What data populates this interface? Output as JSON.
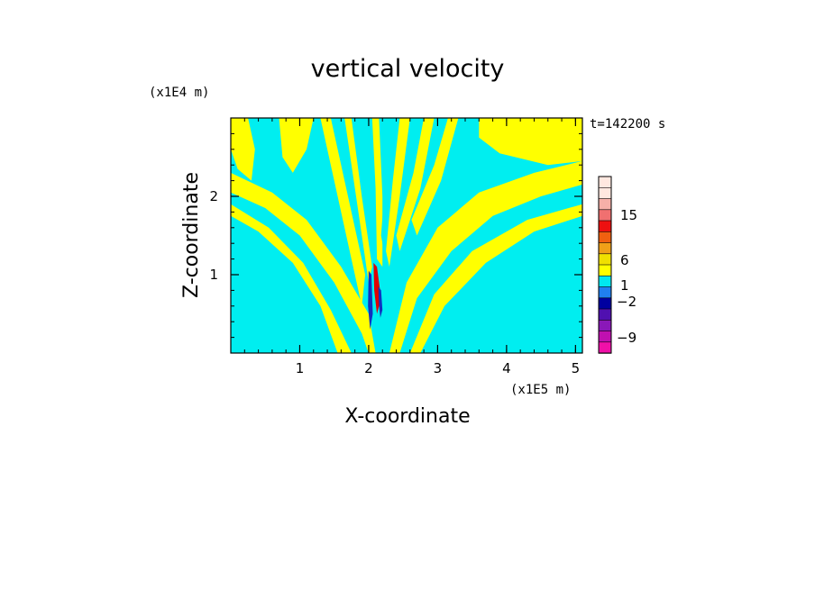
{
  "chart_data": {
    "type": "heatmap",
    "title": "vertical velocity",
    "xlabel": "X-coordinate",
    "ylabel": "Z-coordinate",
    "x_unit": "(x1E5 m)",
    "y_unit": "(x1E4 m)",
    "time_label": "t=142200 s",
    "xlim": [
      0.0,
      5.1
    ],
    "ylim": [
      0.0,
      3.0
    ],
    "x_ticks": [
      1,
      2,
      3,
      4,
      5
    ],
    "y_ticks": [
      1,
      2
    ],
    "colorbar": {
      "tick_labels": [
        "15",
        "6",
        "1",
        "−2",
        "−9"
      ],
      "levels_top_to_bottom": [
        {
          "color": "#ffe8e0"
        },
        {
          "color": "#ffe8e0"
        },
        {
          "color": "#f6b0a8"
        },
        {
          "color": "#f07070"
        },
        {
          "color": "#ee1010"
        },
        {
          "color": "#f06010"
        },
        {
          "color": "#f0a018"
        },
        {
          "color": "#f0e000"
        },
        {
          "color": "#ffff00"
        },
        {
          "color": "#00e8f0"
        },
        {
          "color": "#2080f0"
        },
        {
          "color": "#0000a0"
        },
        {
          "color": "#5010b0"
        },
        {
          "color": "#8a18b8"
        },
        {
          "color": "#c010b0"
        },
        {
          "color": "#f010a8"
        }
      ]
    },
    "field_colors": {
      "positive": "#ffff00",
      "negative": "#00eef0",
      "strong_up": "#e00000",
      "strong_down": "#1030c0"
    },
    "positive_regions": [
      {
        "name": "left-upper-band",
        "path": [
          [
            0.0,
            2.05
          ],
          [
            0.5,
            1.85
          ],
          [
            1.0,
            1.5
          ],
          [
            1.5,
            0.9
          ],
          [
            1.9,
            0.25
          ],
          [
            2.0,
            0.0
          ],
          [
            2.1,
            0.0
          ],
          [
            2.0,
            0.5
          ],
          [
            1.6,
            1.1
          ],
          [
            1.1,
            1.7
          ],
          [
            0.6,
            2.05
          ],
          [
            0.0,
            2.3
          ]
        ]
      },
      {
        "name": "left-mid-band",
        "path": [
          [
            0.0,
            1.75
          ],
          [
            0.4,
            1.55
          ],
          [
            0.9,
            1.15
          ],
          [
            1.3,
            0.6
          ],
          [
            1.55,
            0.0
          ],
          [
            1.75,
            0.0
          ],
          [
            1.45,
            0.55
          ],
          [
            1.05,
            1.15
          ],
          [
            0.55,
            1.6
          ],
          [
            0.0,
            1.9
          ]
        ]
      },
      {
        "name": "right-upper-band",
        "path": [
          [
            2.3,
            0.0
          ],
          [
            2.45,
            0.0
          ],
          [
            2.7,
            0.7
          ],
          [
            3.2,
            1.3
          ],
          [
            3.8,
            1.75
          ],
          [
            4.5,
            2.0
          ],
          [
            5.1,
            2.15
          ],
          [
            5.1,
            2.45
          ],
          [
            4.4,
            2.3
          ],
          [
            3.6,
            2.05
          ],
          [
            3.0,
            1.6
          ],
          [
            2.55,
            0.9
          ]
        ]
      },
      {
        "name": "right-mid-band",
        "path": [
          [
            2.6,
            0.0
          ],
          [
            2.75,
            0.0
          ],
          [
            3.1,
            0.6
          ],
          [
            3.7,
            1.15
          ],
          [
            4.4,
            1.55
          ],
          [
            5.1,
            1.75
          ],
          [
            5.1,
            1.9
          ],
          [
            4.3,
            1.7
          ],
          [
            3.5,
            1.3
          ],
          [
            2.95,
            0.75
          ]
        ]
      },
      {
        "name": "upper-right-block",
        "path": [
          [
            3.6,
            3.0
          ],
          [
            5.1,
            3.0
          ],
          [
            5.1,
            2.45
          ],
          [
            4.6,
            2.4
          ],
          [
            3.9,
            2.55
          ],
          [
            3.6,
            2.75
          ]
        ]
      },
      {
        "name": "upper-left-block",
        "path": [
          [
            0.7,
            3.0
          ],
          [
            1.2,
            3.0
          ],
          [
            1.1,
            2.6
          ],
          [
            0.9,
            2.3
          ],
          [
            0.75,
            2.5
          ]
        ]
      },
      {
        "name": "top-left-streak",
        "path": [
          [
            0.0,
            3.0
          ],
          [
            0.25,
            3.0
          ],
          [
            0.35,
            2.6
          ],
          [
            0.3,
            2.2
          ],
          [
            0.1,
            2.35
          ],
          [
            0.0,
            2.6
          ]
        ]
      },
      {
        "name": "center-fan-1",
        "path": [
          [
            1.3,
            3.0
          ],
          [
            1.45,
            3.0
          ],
          [
            1.7,
            2.0
          ],
          [
            1.95,
            1.0
          ],
          [
            1.9,
            0.6
          ],
          [
            1.75,
            1.2
          ],
          [
            1.5,
            2.2
          ]
        ]
      },
      {
        "name": "center-fan-2",
        "path": [
          [
            1.65,
            3.0
          ],
          [
            1.75,
            3.0
          ],
          [
            1.9,
            2.0
          ],
          [
            2.05,
            1.1
          ],
          [
            2.0,
            0.9
          ],
          [
            1.85,
            1.8
          ]
        ]
      },
      {
        "name": "center-fan-3",
        "path": [
          [
            2.05,
            3.0
          ],
          [
            2.15,
            3.0
          ],
          [
            2.2,
            2.0
          ],
          [
            2.2,
            1.1
          ],
          [
            2.12,
            1.2
          ],
          [
            2.1,
            2.1
          ]
        ]
      },
      {
        "name": "center-fan-4",
        "path": [
          [
            2.45,
            3.0
          ],
          [
            2.6,
            3.0
          ],
          [
            2.45,
            2.0
          ],
          [
            2.3,
            1.1
          ],
          [
            2.25,
            1.3
          ],
          [
            2.35,
            2.2
          ]
        ]
      },
      {
        "name": "center-fan-5",
        "path": [
          [
            2.8,
            3.0
          ],
          [
            2.95,
            3.0
          ],
          [
            2.75,
            2.1
          ],
          [
            2.45,
            1.3
          ],
          [
            2.4,
            1.5
          ],
          [
            2.65,
            2.3
          ]
        ]
      },
      {
        "name": "center-fan-6",
        "path": [
          [
            3.15,
            3.0
          ],
          [
            3.3,
            3.0
          ],
          [
            3.05,
            2.2
          ],
          [
            2.7,
            1.5
          ],
          [
            2.62,
            1.7
          ],
          [
            2.95,
            2.4
          ]
        ]
      }
    ],
    "negative_streaks": [
      {
        "path": [
          [
            1.55,
            3.0
          ],
          [
            1.62,
            3.0
          ],
          [
            1.8,
            2.0
          ],
          [
            1.95,
            1.2
          ],
          [
            1.9,
            1.4
          ],
          [
            1.7,
            2.2
          ]
        ]
      },
      {
        "path": [
          [
            2.25,
            3.0
          ],
          [
            2.33,
            3.0
          ],
          [
            2.3,
            2.0
          ],
          [
            2.22,
            1.3
          ],
          [
            2.18,
            1.5
          ],
          [
            2.24,
            2.2
          ]
        ]
      }
    ],
    "core_features": [
      {
        "type": "up",
        "path": [
          [
            2.07,
            1.15
          ],
          [
            2.12,
            1.1
          ],
          [
            2.18,
            0.7
          ],
          [
            2.12,
            0.5
          ],
          [
            2.08,
            0.8
          ]
        ]
      },
      {
        "type": "down",
        "path": [
          [
            2.0,
            1.05
          ],
          [
            2.04,
            1.0
          ],
          [
            2.06,
            0.5
          ],
          [
            2.02,
            0.3
          ],
          [
            1.99,
            0.6
          ]
        ]
      },
      {
        "type": "down",
        "path": [
          [
            2.14,
            0.85
          ],
          [
            2.18,
            0.8
          ],
          [
            2.2,
            0.55
          ],
          [
            2.17,
            0.45
          ],
          [
            2.15,
            0.6
          ]
        ]
      }
    ]
  }
}
